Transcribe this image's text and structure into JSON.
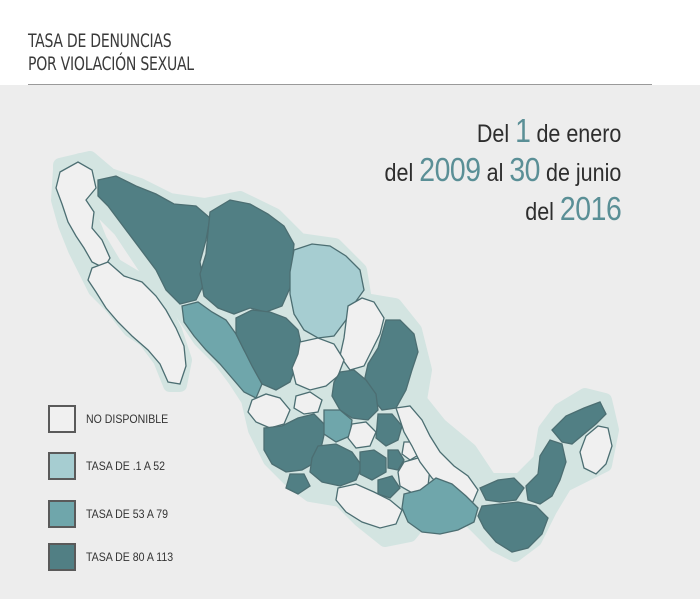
{
  "title": {
    "line1": "TASA DE DENUNCIAS",
    "line2": "POR VIOLACIÓN SEXUAL"
  },
  "date": {
    "l1_a": "Del ",
    "l1_num": "1",
    "l1_b": " de enero",
    "l2_a": "del ",
    "l2_num1": "2009",
    "l2_b": " al ",
    "l2_num2": "30",
    "l2_c": " de junio",
    "l3_a": "del ",
    "l3_num": "2016"
  },
  "colors": {
    "no_data": "#f0f0f0",
    "low": "#a6cdd1",
    "mid": "#6fa6ab",
    "high": "#517f84",
    "outline": "#d3e4e1",
    "accent": "#5a8f96"
  },
  "legend": [
    {
      "label": "NO DISPONIBLE",
      "color": "#f0f0f0"
    },
    {
      "label": "TASA DE .1 A 52",
      "color": "#a6cdd1"
    },
    {
      "label": "TASA DE 53 A 79",
      "color": "#6fa6ab"
    },
    {
      "label": "TASA DE 80 A 113",
      "color": "#517f84"
    }
  ]
}
